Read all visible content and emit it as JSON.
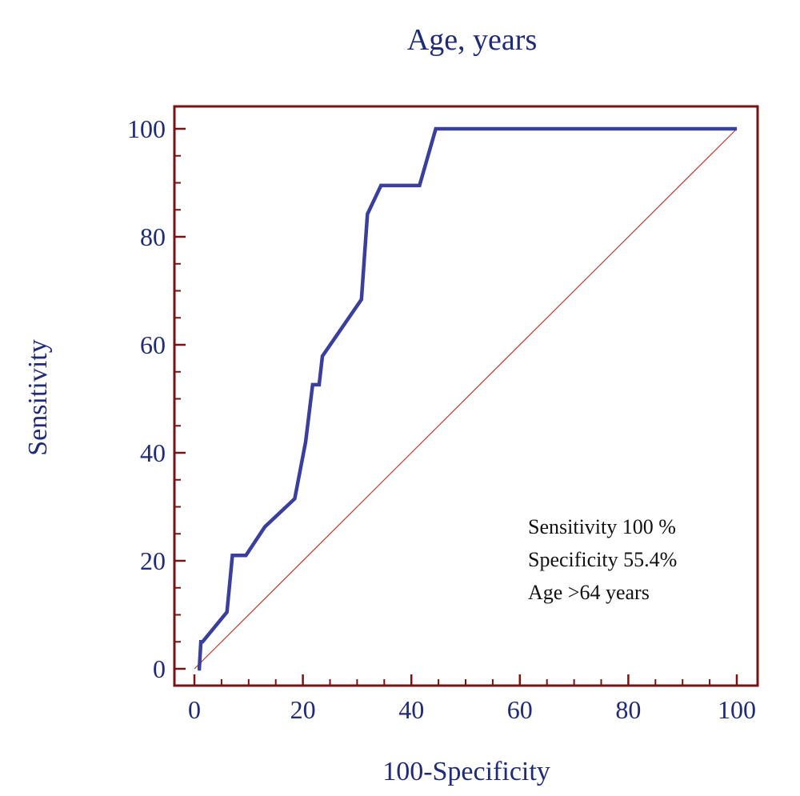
{
  "chart_data": {
    "type": "line",
    "title": "Age, years",
    "xlabel": "100-Specificity",
    "ylabel": "Sensitivity",
    "xlim": [
      0,
      100
    ],
    "ylim": [
      0,
      100
    ],
    "xticks": [
      "0",
      "20",
      "40",
      "60",
      "80",
      "100"
    ],
    "yticks": [
      "0",
      "20",
      "40",
      "60",
      "80",
      "100"
    ],
    "grid": false,
    "legend": "none",
    "series": [
      {
        "x": [
          0.6,
          0.9,
          1.2,
          1.5,
          6,
          7,
          9.5,
          13,
          18.5,
          20.5,
          21.8,
          23,
          23.6,
          30.8,
          31.9,
          34.4,
          41.5,
          44.5,
          100
        ],
        "y": [
          0,
          0,
          5,
          5,
          10.5,
          21,
          21,
          26.3,
          31.5,
          42,
          52.6,
          52.6,
          57.9,
          68.4,
          84.2,
          89.5,
          89.5,
          100,
          100
        ]
      }
    ],
    "reference_line": {
      "x": [
        0,
        100
      ],
      "y": [
        0,
        100
      ]
    },
    "annotations": [
      "Sensitivity 100 %",
      "Specificity 55.4%",
      "Age >64 years"
    ],
    "colors": {
      "curve": "#3a3f9e",
      "frame": "#7a1212",
      "diagonal": "#c0392b",
      "text": "#1f2a78"
    }
  }
}
